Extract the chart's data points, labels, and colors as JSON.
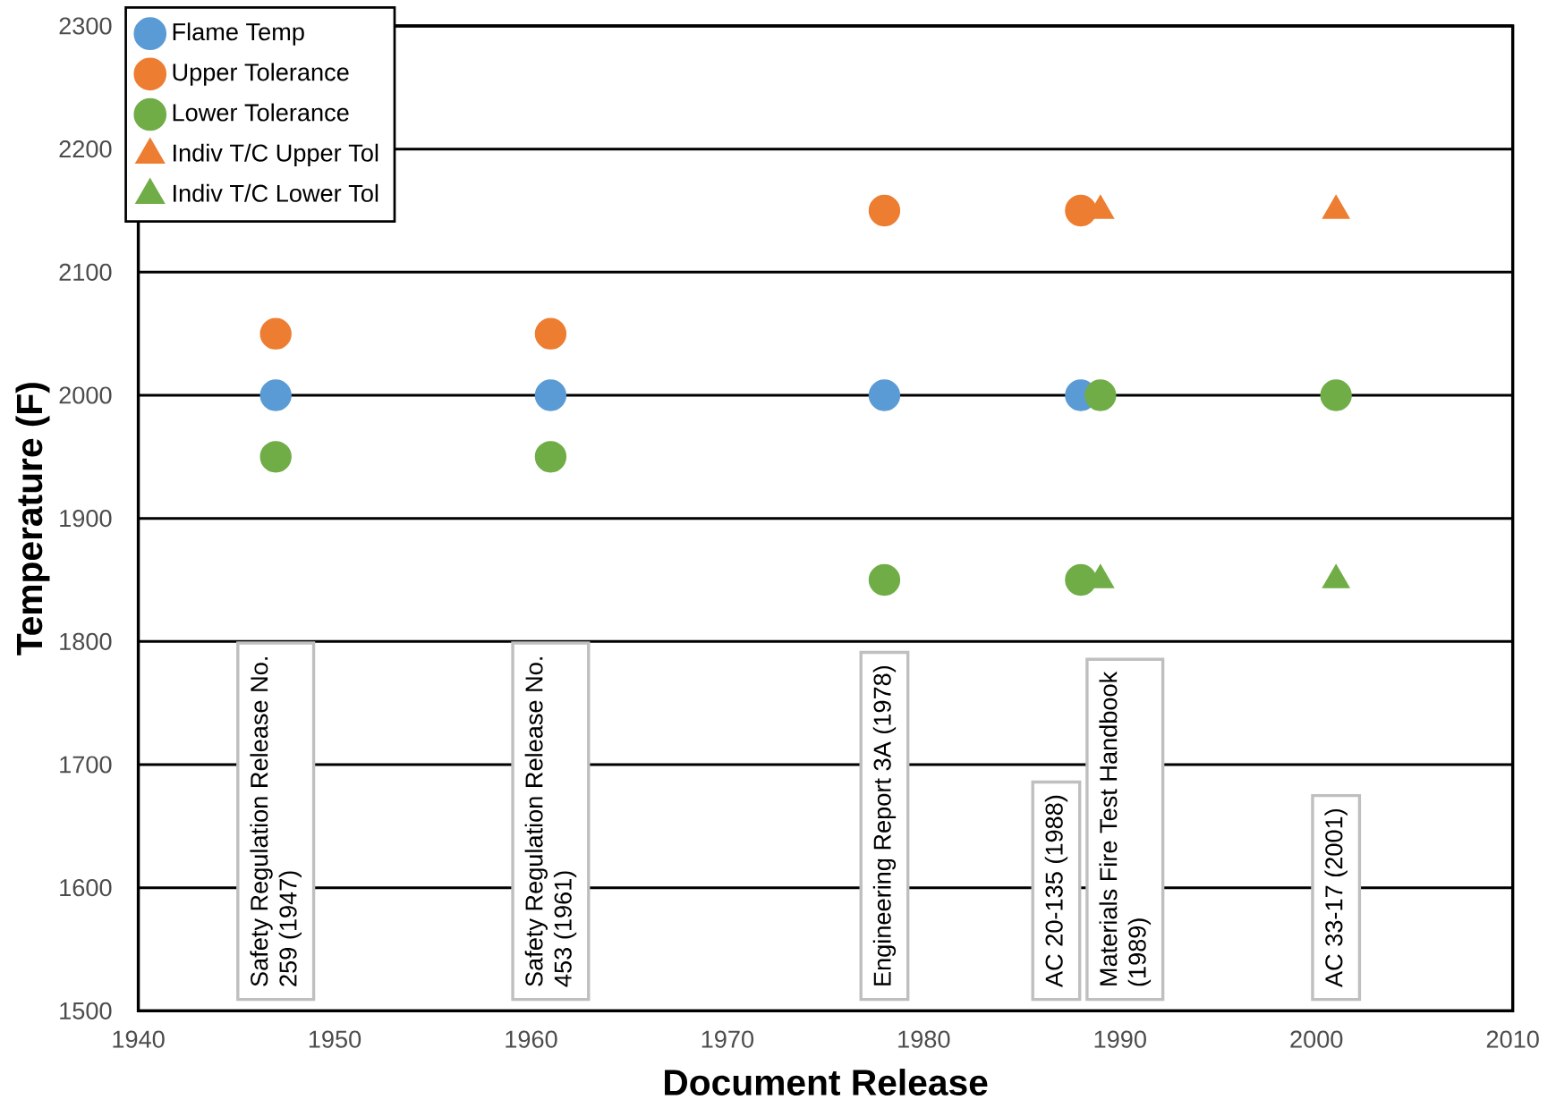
{
  "chart_data": {
    "type": "scatter",
    "xlabel": "Document Release",
    "ylabel": "Temperature (F)",
    "xlim": [
      1940,
      2010
    ],
    "xticks": [
      1940,
      1950,
      1960,
      1970,
      1980,
      1990,
      2000,
      2010
    ],
    "ylim": [
      1500,
      2300
    ],
    "yticks": [
      1500,
      1600,
      1700,
      1800,
      1900,
      2000,
      2100,
      2200,
      2300
    ],
    "grid": "y",
    "legend": "top left",
    "series": [
      {
        "name": "Flame Temp",
        "color": "#5b9bd5",
        "marker": "circle",
        "x": [
          1947,
          1961,
          1978,
          1988
        ],
        "values": [
          2000,
          2000,
          2000,
          2000
        ]
      },
      {
        "name": "Upper Tolerance",
        "color": "#ed7d31",
        "marker": "circle",
        "x": [
          1947,
          1961,
          1978,
          1988
        ],
        "values": [
          2050,
          2050,
          2150,
          2150
        ]
      },
      {
        "name": "Lower Tolerance",
        "color": "#70ad47",
        "marker": "circle",
        "x": [
          1947,
          1961,
          1978,
          1988,
          1989,
          2001
        ],
        "values": [
          1950,
          1950,
          1850,
          1850,
          2000,
          2000
        ]
      },
      {
        "name": "Indiv T/C Upper Tol",
        "color": "#ed7d31",
        "marker": "triangle",
        "x": [
          1989,
          2001
        ],
        "values": [
          2150,
          2150
        ]
      },
      {
        "name": "Indiv T/C Lower Tol",
        "color": "#70ad47",
        "marker": "triangle",
        "x": [
          1989,
          2001
        ],
        "values": [
          1850,
          1850
        ]
      }
    ],
    "annotations": [
      "Safety Regulation Release No. 259 (1947)",
      "Safety Regulation Release No. 453 (1961)",
      "Engineering Report 3A (1978)",
      "AC 20-135 (1988)",
      "Materials Fire Test Handbook (1989)",
      "AC 33-17 (2001)"
    ]
  }
}
